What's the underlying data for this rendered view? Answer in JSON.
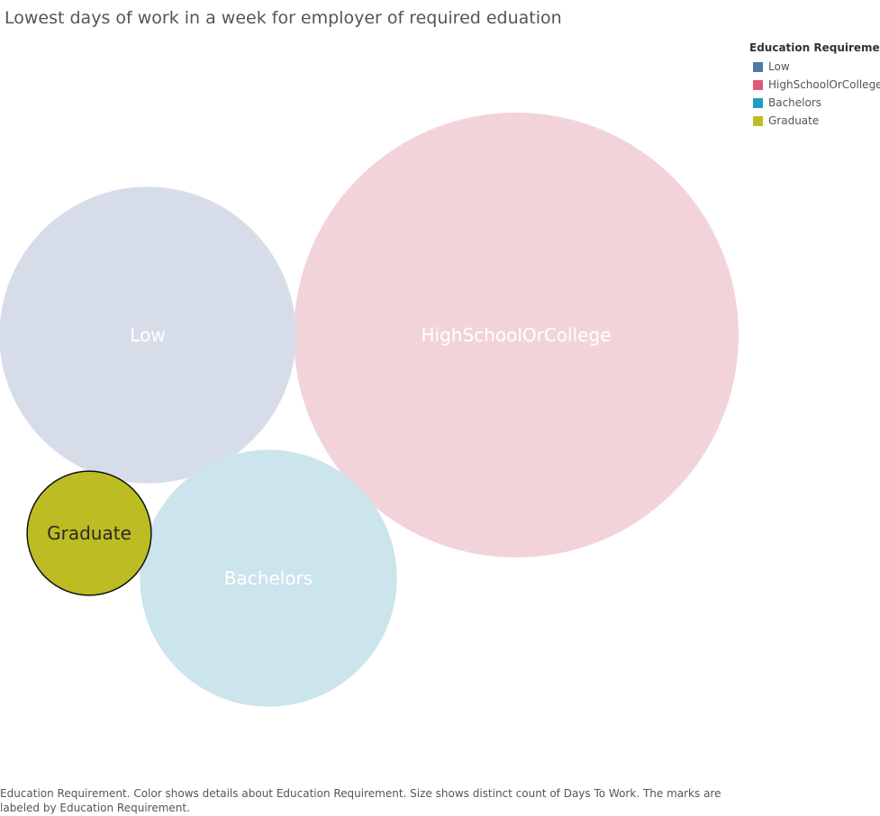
{
  "chart_data": {
    "type": "bubble",
    "title": "Lowest days of work in a week for employer of required eduation",
    "legend": {
      "title": "Education Requirement",
      "placement": "top-right",
      "entries": [
        {
          "label": "Low",
          "color": "#4e79a7"
        },
        {
          "label": "HighSchoolOrCollege",
          "color": "#e15773"
        },
        {
          "label": "Bachelors",
          "color": "#1f9dc0"
        },
        {
          "label": "Graduate",
          "color": "#bcbd22"
        }
      ]
    },
    "bubbles": [
      {
        "label": "Low",
        "value": 4,
        "fill": "#d7dde8",
        "text_color": "#ffffff",
        "highlighted": false
      },
      {
        "label": "HighSchoolOrCollege",
        "value": 9,
        "fill": "#f3d3da",
        "text_color": "#ffffff",
        "highlighted": false
      },
      {
        "label": "Bachelors",
        "value": 3,
        "fill": "#cce4eb",
        "text_color": "#ffffff",
        "highlighted": false
      },
      {
        "label": "Graduate",
        "value": 0.7,
        "fill": "#bcbd22",
        "text_color": "#2a2a2a",
        "highlighted": true
      }
    ],
    "caption": "Education Requirement.  Color shows details about Education Requirement.  Size shows distinct count of Days To Work.  The marks are labeled by Education Requirement."
  }
}
